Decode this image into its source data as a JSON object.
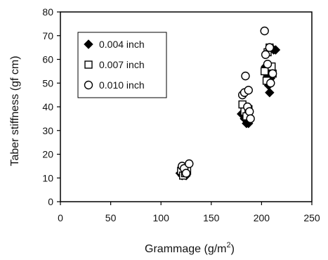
{
  "chart_data": {
    "type": "scatter",
    "xlabel_main": "Grammage (g/m",
    "xlabel_sup": "2",
    "xlabel_tail": ")",
    "ylabel": "Taber stiffness (gf cm)",
    "xlim": [
      0,
      250
    ],
    "ylim": [
      0,
      80
    ],
    "x_ticks": [
      "0",
      "50",
      "100",
      "150",
      "200",
      "250"
    ],
    "y_ticks": [
      "0",
      "10",
      "20",
      "30",
      "40",
      "50",
      "60",
      "70",
      "80"
    ],
    "grid": false,
    "legend_position": "top-left",
    "series": [
      {
        "name": "0.004 inch",
        "marker": "diamond",
        "points": [
          [
            119,
            12
          ],
          [
            121,
            11
          ],
          [
            123,
            12
          ],
          [
            125,
            11
          ],
          [
            180,
            37
          ],
          [
            183,
            35
          ],
          [
            185,
            33
          ],
          [
            187,
            33
          ],
          [
            204,
            57
          ],
          [
            206,
            53
          ],
          [
            207,
            49
          ],
          [
            208,
            46
          ],
          [
            209,
            52
          ],
          [
            212,
            64
          ],
          [
            214,
            64
          ]
        ]
      },
      {
        "name": "0.007 inch",
        "marker": "square",
        "points": [
          [
            120,
            13
          ],
          [
            122,
            11
          ],
          [
            124,
            12
          ],
          [
            126,
            13
          ],
          [
            181,
            41
          ],
          [
            183,
            38
          ],
          [
            185,
            36
          ],
          [
            187,
            39
          ],
          [
            203,
            55
          ],
          [
            205,
            51
          ],
          [
            206,
            63
          ],
          [
            208,
            65
          ],
          [
            210,
            57
          ],
          [
            211,
            54
          ]
        ]
      },
      {
        "name": "0.010 inch",
        "marker": "circle",
        "points": [
          [
            121,
            15
          ],
          [
            123,
            14
          ],
          [
            125,
            12
          ],
          [
            128,
            16
          ],
          [
            181,
            45
          ],
          [
            183,
            46
          ],
          [
            184,
            53
          ],
          [
            186,
            40
          ],
          [
            187,
            47
          ],
          [
            188,
            38
          ],
          [
            189,
            35
          ],
          [
            203,
            72
          ],
          [
            204,
            62
          ],
          [
            206,
            58
          ],
          [
            208,
            65
          ],
          [
            209,
            50
          ],
          [
            211,
            54
          ]
        ]
      }
    ]
  }
}
